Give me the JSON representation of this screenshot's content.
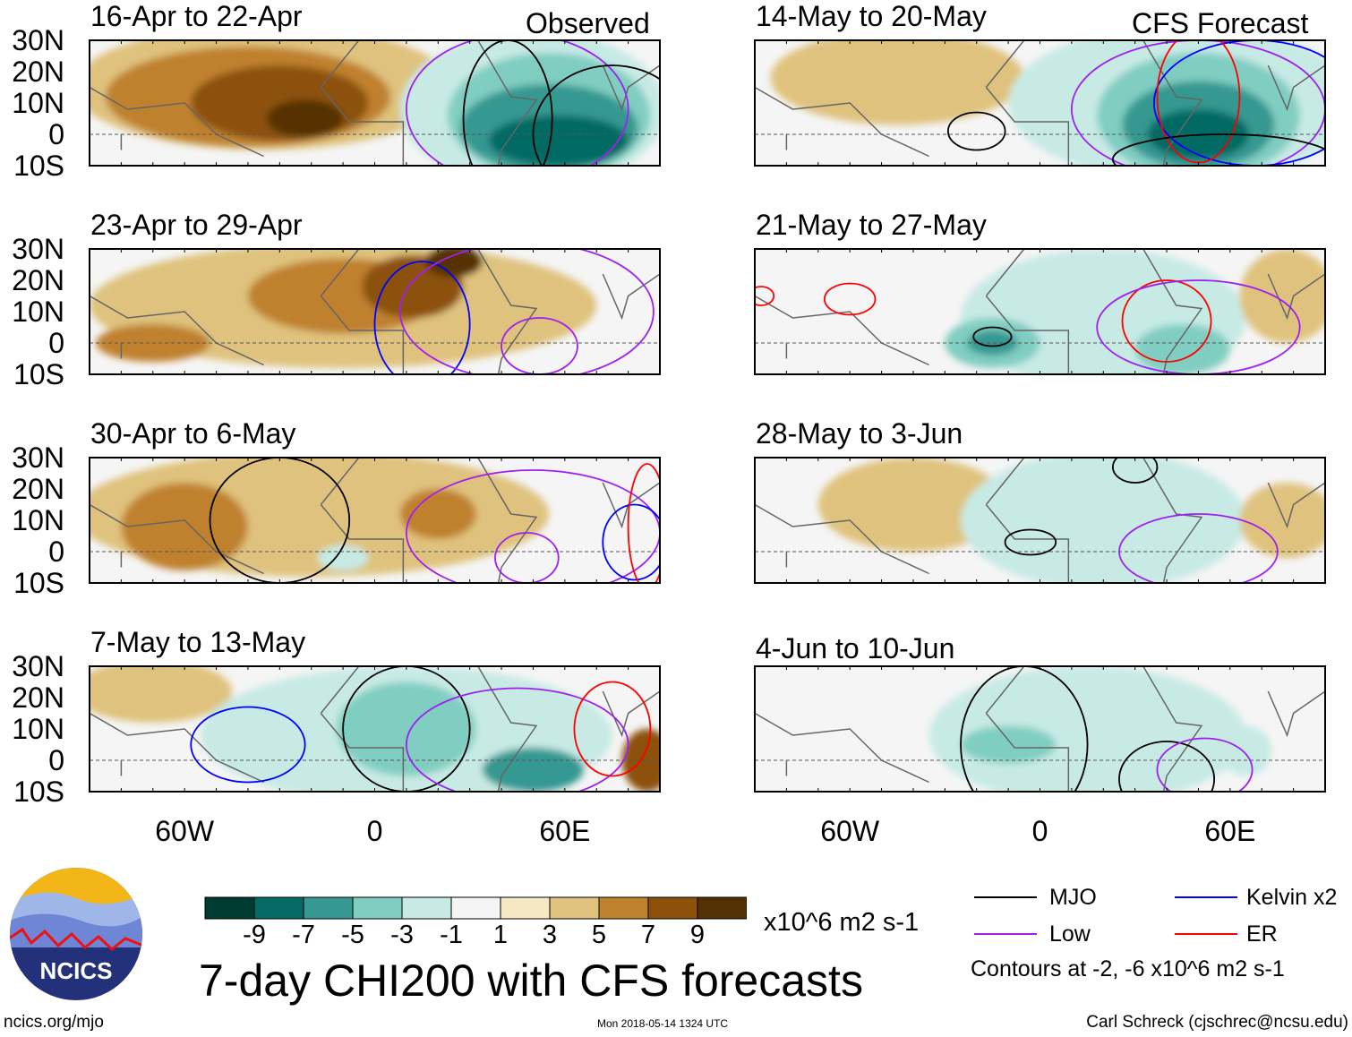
{
  "header": {
    "left_label": "Observed",
    "right_label": "CFS Forecast"
  },
  "lat_ticks": [
    "30N",
    "20N",
    "10N",
    "0",
    "10S"
  ],
  "lon_ticks": [
    "60W",
    "0",
    "60E"
  ],
  "colors": {
    "levels": [
      "#013c33",
      "#046a63",
      "#369891",
      "#80cdc1",
      "#c7eae5",
      "#f5f5f5",
      "#f6e8c3",
      "#dfc27d",
      "#bf812d",
      "#8c510a",
      "#543005"
    ],
    "MJO": "#000000",
    "Kelvin": "#0000ff",
    "Low": "#a020f0",
    "ER": "#ff0000"
  },
  "panels": [
    {
      "title": "16-Apr to 22-Apr",
      "anomalies": [
        {
          "lon": -35,
          "lat": 15,
          "rlon": 60,
          "rlat": 20,
          "value": 3
        },
        {
          "lon": -40,
          "lat": 12,
          "rlon": 45,
          "rlat": 16,
          "value": 5
        },
        {
          "lon": -30,
          "lat": 10,
          "rlon": 28,
          "rlat": 12,
          "value": 7
        },
        {
          "lon": -22,
          "lat": 5,
          "rlon": 12,
          "rlat": 6,
          "value": 9
        },
        {
          "lon": 50,
          "lat": 8,
          "rlon": 42,
          "rlat": 25,
          "value": -3
        },
        {
          "lon": 55,
          "lat": 6,
          "rlon": 32,
          "rlat": 20,
          "value": -5
        },
        {
          "lon": 55,
          "lat": 2,
          "rlon": 28,
          "rlat": 14,
          "value": -7
        },
        {
          "lon": 58,
          "lat": -2,
          "rlon": 22,
          "rlat": 8,
          "value": -9
        }
      ],
      "contours": [
        {
          "type": "Low",
          "lon": 45,
          "lat": 8,
          "rlon": 35,
          "rlat": 24
        },
        {
          "type": "MJO",
          "lon": 75,
          "lat": 0,
          "rlon": 25,
          "rlat": 22
        },
        {
          "type": "MJO",
          "lon": 42,
          "lat": 5,
          "rlon": 14,
          "rlat": 25
        }
      ]
    },
    {
      "title": "14-May to 20-May",
      "anomalies": [
        {
          "lon": -45,
          "lat": 18,
          "rlon": 40,
          "rlat": 15,
          "value": 3
        },
        {
          "lon": 45,
          "lat": 10,
          "rlon": 55,
          "rlat": 25,
          "value": -3
        },
        {
          "lon": 50,
          "lat": 6,
          "rlon": 32,
          "rlat": 20,
          "value": -5
        },
        {
          "lon": 50,
          "lat": 3,
          "rlon": 24,
          "rlat": 14,
          "value": -7
        },
        {
          "lon": 50,
          "lat": 0,
          "rlon": 16,
          "rlat": 8,
          "value": -9
        }
      ],
      "contours": [
        {
          "type": "MJO",
          "lon": -20,
          "lat": 1,
          "rlon": 9,
          "rlat": 6
        },
        {
          "type": "Low",
          "lon": 50,
          "lat": 8,
          "rlon": 40,
          "rlat": 22
        },
        {
          "type": "Kelvin",
          "lon": 68,
          "lat": 10,
          "rlon": 32,
          "rlat": 20
        },
        {
          "type": "ER",
          "lon": 50,
          "lat": 12,
          "rlon": 13,
          "rlat": 21
        },
        {
          "type": "MJO",
          "lon": 58,
          "lat": -8,
          "rlon": 35,
          "rlat": 8
        }
      ]
    },
    {
      "title": "23-Apr to 29-Apr",
      "anomalies": [
        {
          "lon": -10,
          "lat": 12,
          "rlon": 80,
          "rlat": 20,
          "value": 3
        },
        {
          "lon": -10,
          "lat": 15,
          "rlon": 30,
          "rlat": 12,
          "value": 5
        },
        {
          "lon": -70,
          "lat": 0,
          "rlon": 18,
          "rlat": 6,
          "value": 5
        },
        {
          "lon": 12,
          "lat": 18,
          "rlon": 16,
          "rlat": 10,
          "value": 7
        },
        {
          "lon": 25,
          "lat": 26,
          "rlon": 9,
          "rlat": 5,
          "value": 9
        }
      ],
      "contours": [
        {
          "type": "Kelvin",
          "lon": 15,
          "lat": 6,
          "rlon": 15,
          "rlat": 20
        },
        {
          "type": "Low",
          "lon": 48,
          "lat": 10,
          "rlon": 40,
          "rlat": 22
        },
        {
          "type": "Low",
          "lon": 52,
          "lat": -1,
          "rlon": 12,
          "rlat": 9
        }
      ]
    },
    {
      "title": "21-May to 27-May",
      "anomalies": [
        {
          "lon": 20,
          "lat": 8,
          "rlon": 45,
          "rlat": 22,
          "value": -3
        },
        {
          "lon": -15,
          "lat": 0,
          "rlon": 15,
          "rlat": 8,
          "value": -5
        },
        {
          "lon": -15,
          "lat": 0,
          "rlon": 8,
          "rlat": 4,
          "value": -7
        },
        {
          "lon": 45,
          "lat": -2,
          "rlon": 15,
          "rlat": 8,
          "value": -5
        },
        {
          "lon": 78,
          "lat": 15,
          "rlon": 15,
          "rlat": 15,
          "value": 3
        }
      ],
      "contours": [
        {
          "type": "ER",
          "lon": -88,
          "lat": 15,
          "rlon": 4,
          "rlat": 3
        },
        {
          "type": "ER",
          "lon": -60,
          "lat": 14,
          "rlon": 8,
          "rlat": 5
        },
        {
          "type": "ER",
          "lon": 40,
          "lat": 7,
          "rlon": 14,
          "rlat": 13
        },
        {
          "type": "Low",
          "lon": 50,
          "lat": 5,
          "rlon": 32,
          "rlat": 15
        },
        {
          "type": "MJO",
          "lon": -15,
          "lat": 2,
          "rlon": 6,
          "rlat": 3
        }
      ]
    },
    {
      "title": "30-Apr to 6-May",
      "anomalies": [
        {
          "lon": -20,
          "lat": 12,
          "rlon": 75,
          "rlat": 20,
          "value": 3
        },
        {
          "lon": -60,
          "lat": 8,
          "rlon": 20,
          "rlat": 14,
          "value": 5
        },
        {
          "lon": 20,
          "lat": 12,
          "rlon": 12,
          "rlat": 8,
          "value": 5
        },
        {
          "lon": -10,
          "lat": -2,
          "rlon": 8,
          "rlat": 4,
          "value": -3
        }
      ],
      "contours": [
        {
          "type": "MJO",
          "lon": -30,
          "lat": 10,
          "rlon": 22,
          "rlat": 20
        },
        {
          "type": "Low",
          "lon": 50,
          "lat": 6,
          "rlon": 40,
          "rlat": 20
        },
        {
          "type": "Low",
          "lon": 48,
          "lat": -2,
          "rlon": 10,
          "rlat": 8
        },
        {
          "type": "Kelvin",
          "lon": 82,
          "lat": 3,
          "rlon": 10,
          "rlat": 12
        },
        {
          "type": "ER",
          "lon": 86,
          "lat": 8,
          "rlon": 6,
          "rlat": 20
        }
      ]
    },
    {
      "title": "28-May to 3-Jun",
      "anomalies": [
        {
          "lon": -40,
          "lat": 15,
          "rlon": 30,
          "rlat": 15,
          "value": 3
        },
        {
          "lon": 20,
          "lat": 10,
          "rlon": 45,
          "rlat": 22,
          "value": -3
        },
        {
          "lon": 78,
          "lat": 10,
          "rlon": 15,
          "rlat": 12,
          "value": 3
        }
      ],
      "contours": [
        {
          "type": "MJO",
          "lon": -3,
          "lat": 3,
          "rlon": 8,
          "rlat": 4
        },
        {
          "type": "MJO",
          "lon": 30,
          "lat": 27,
          "rlon": 7,
          "rlat": 5
        },
        {
          "type": "Low",
          "lon": 50,
          "lat": 0,
          "rlon": 25,
          "rlat": 12
        }
      ]
    },
    {
      "title": "7-May to 13-May",
      "anomalies": [
        {
          "lon": -70,
          "lat": 22,
          "rlon": 25,
          "rlat": 10,
          "value": 3
        },
        {
          "lon": 10,
          "lat": 8,
          "rlon": 65,
          "rlat": 22,
          "value": -3
        },
        {
          "lon": 10,
          "lat": 10,
          "rlon": 22,
          "rlat": 15,
          "value": -5
        },
        {
          "lon": 50,
          "lat": -3,
          "rlon": 16,
          "rlat": 7,
          "value": -7
        },
        {
          "lon": 86,
          "lat": 0,
          "rlon": 8,
          "rlat": 10,
          "value": 7
        }
      ],
      "contours": [
        {
          "type": "Kelvin",
          "lon": -40,
          "lat": 5,
          "rlon": 18,
          "rlat": 12
        },
        {
          "type": "MJO",
          "lon": 10,
          "lat": 10,
          "rlon": 20,
          "rlat": 20
        },
        {
          "type": "Low",
          "lon": 45,
          "lat": 5,
          "rlon": 35,
          "rlat": 18
        },
        {
          "type": "ER",
          "lon": 75,
          "lat": 10,
          "rlon": 12,
          "rlat": 15
        }
      ]
    },
    {
      "title": "4-Jun to 10-Jun",
      "anomalies": [
        {
          "lon": 15,
          "lat": 8,
          "rlon": 50,
          "rlat": 22,
          "value": -3
        },
        {
          "lon": -10,
          "lat": 5,
          "rlon": 15,
          "rlat": 6,
          "value": -5
        },
        {
          "lon": 65,
          "lat": 3,
          "rlon": 8,
          "rlat": 8,
          "value": -3
        }
      ],
      "contours": [
        {
          "type": "MJO",
          "lon": -5,
          "lat": 5,
          "rlon": 20,
          "rlat": 25
        },
        {
          "type": "MJO",
          "lon": 40,
          "lat": -6,
          "rlon": 15,
          "rlat": 12
        },
        {
          "type": "Low",
          "lon": 52,
          "lat": -3,
          "rlon": 15,
          "rlat": 10
        }
      ]
    }
  ],
  "colorbar": {
    "ticks": [
      "-9",
      "-7",
      "-5",
      "-3",
      "-1",
      "1",
      "3",
      "5",
      "7",
      "9"
    ],
    "units": "x10^6 m2 s-1"
  },
  "main_title": "7-day CHI200 with CFS forecasts",
  "legend": {
    "MJO": "MJO",
    "Kelvin": "Kelvin x2",
    "Low": "Low",
    "ER": "ER",
    "note": "Contours at -2, -6 x10^6 m2 s-1"
  },
  "logo": {
    "text": "NCICS"
  },
  "footer": {
    "url": "ncics.org/mjo",
    "timestamp": "Mon 2018-05-14 1324 UTC",
    "credit": "Carl Schreck (cjschrec@ncsu.edu)"
  }
}
